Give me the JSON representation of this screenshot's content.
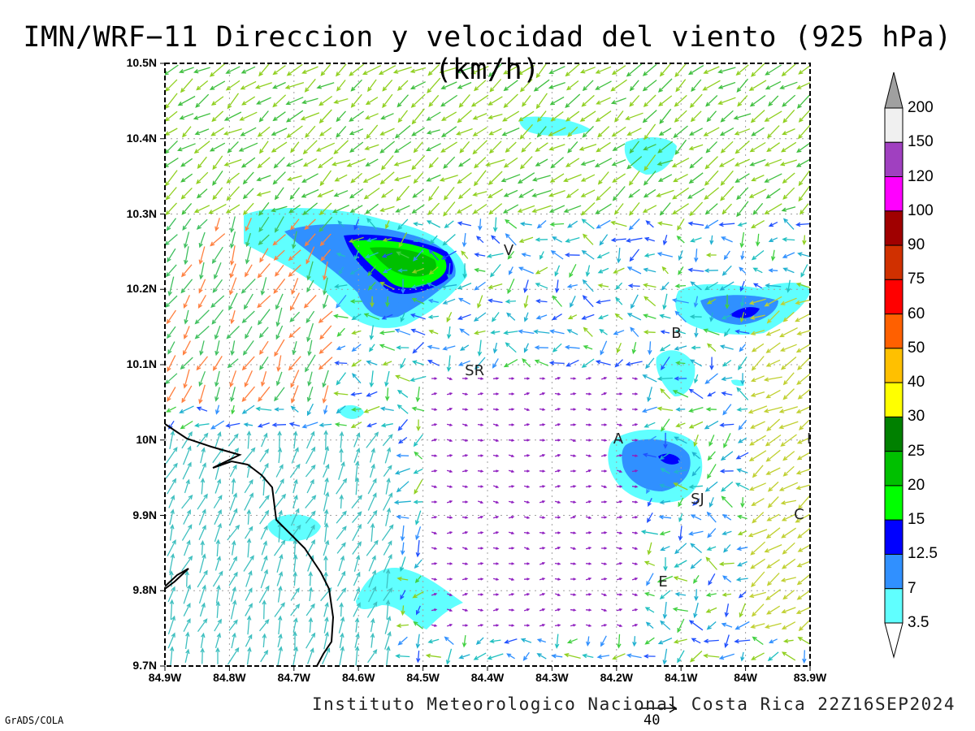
{
  "title": "IMN/WRF−11 Direccion y velocidad del viento (925 hPa)(km/h)",
  "footer": "Instituto Meteorologico Nacional Costa Rica 22Z16SEP2024",
  "software": "GrADS/COLA",
  "reference_vector_label": "40",
  "axes": {
    "x_ticks": [
      "84.9W",
      "84.8W",
      "84.7W",
      "84.6W",
      "84.5W",
      "84.4W",
      "84.3W",
      "84.2W",
      "84.1W",
      "84W",
      "83.9W"
    ],
    "y_ticks": [
      "10.5N",
      "10.4N",
      "10.3N",
      "10.2N",
      "10.1N",
      "10N",
      "9.9N",
      "9.8N",
      "9.7N"
    ],
    "lon_range": [
      -84.9,
      -83.9
    ],
    "lat_range": [
      9.7,
      10.5
    ],
    "grid": true
  },
  "colorbar": {
    "levels": [
      "200",
      "150",
      "120",
      "100",
      "90",
      "75",
      "60",
      "50",
      "40",
      "30",
      "25",
      "20",
      "15",
      "12.5",
      "7",
      "3.5"
    ],
    "colors": [
      "#f0f0f0",
      "#a040c0",
      "#ff00ff",
      "#a00000",
      "#d03000",
      "#ff0000",
      "#ff6000",
      "#ffc000",
      "#ffff00",
      "#008000",
      "#00c000",
      "#00ff00",
      "#0000ff",
      "#3090ff",
      "#60ffff"
    ],
    "top_arrow_color": "#a0a0a0"
  },
  "cities": [
    {
      "label": "V",
      "lon": -84.37,
      "lat": 10.25
    },
    {
      "label": "SR",
      "lon": -84.43,
      "lat": 10.09
    },
    {
      "label": "B",
      "lon": -84.11,
      "lat": 10.14
    },
    {
      "label": "A",
      "lon": -84.2,
      "lat": 10.0
    },
    {
      "label": "SJ",
      "lon": -84.08,
      "lat": 9.92
    },
    {
      "label": "C",
      "lon": -83.92,
      "lat": 9.9
    },
    {
      "label": "I",
      "lon": -83.9,
      "lat": 10.0
    },
    {
      "label": "E",
      "lon": -84.13,
      "lat": 9.81
    }
  ],
  "wind_fields": [
    {
      "name": "north band",
      "lon": [
        -84.9,
        -83.9
      ],
      "lat": [
        10.3,
        10.5
      ],
      "dir_deg": 235,
      "speed_color": "#90d020"
    },
    {
      "name": "northwest flank",
      "lon": [
        -84.9,
        -84.65
      ],
      "lat": [
        10.05,
        10.3
      ],
      "dir_deg": 210,
      "speed_color": "#ff8040"
    },
    {
      "name": "central light",
      "lon": [
        -84.5,
        -84.15
      ],
      "lat": [
        9.75,
        10.1
      ],
      "dir_deg": 90,
      "speed_color": "#9020c0"
    },
    {
      "name": "southwest",
      "lon": [
        -84.9,
        -84.55
      ],
      "lat": [
        9.7,
        10.0
      ],
      "dir_deg": 20,
      "speed_color": "#40c0c0"
    },
    {
      "name": "east",
      "lon": [
        -84.0,
        -83.9
      ],
      "lat": [
        9.75,
        10.2
      ],
      "dir_deg": 240,
      "speed_color": "#c0d030"
    }
  ]
}
